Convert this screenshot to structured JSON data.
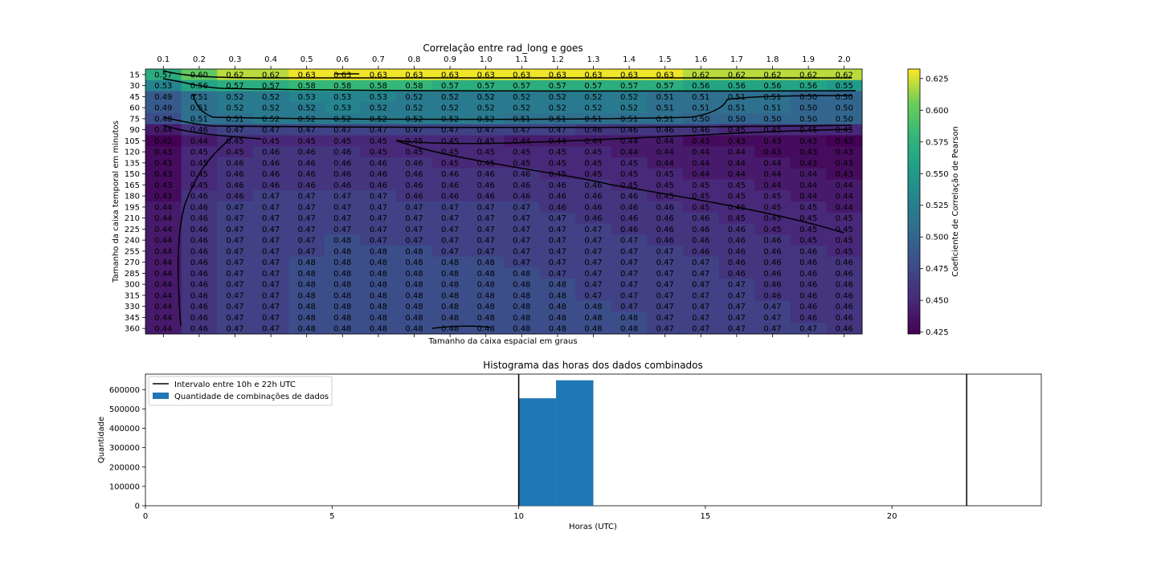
{
  "chart_data": [
    {
      "type": "heatmap",
      "title": "Correlação entre rad_long e goes",
      "xlabel": "Tamanho da caixa espacial em graus",
      "ylabel": "Tamanho da caixa temporal em minutos",
      "colorbar_label": "Coeficiente de Correlação de Pearson",
      "colormap": "viridis",
      "x_tick_position": "top",
      "x": [
        "0.1",
        "0.2",
        "0.3",
        "0.4",
        "0.5",
        "0.6",
        "0.7",
        "0.8",
        "0.9",
        "1.0",
        "1.1",
        "1.2",
        "1.3",
        "1.4",
        "1.5",
        "1.6",
        "1.7",
        "1.8",
        "1.9",
        "2.0"
      ],
      "y": [
        "15",
        "30",
        "45",
        "60",
        "75",
        "90",
        "105",
        "120",
        "135",
        "150",
        "165",
        "180",
        "195",
        "210",
        "225",
        "240",
        "255",
        "270",
        "285",
        "300",
        "315",
        "330",
        "345",
        "360"
      ],
      "vmin": 0.4235,
      "vmax": 0.6325,
      "colorbar_ticks": [
        "0.425",
        "0.450",
        "0.475",
        "0.500",
        "0.525",
        "0.550",
        "0.575",
        "0.600",
        "0.625"
      ],
      "values": [
        [
          0.57,
          0.6,
          0.62,
          0.62,
          0.63,
          0.63,
          0.63,
          0.63,
          0.63,
          0.63,
          0.63,
          0.63,
          0.63,
          0.63,
          0.63,
          0.62,
          0.62,
          0.62,
          0.62,
          0.62
        ],
        [
          0.53,
          0.56,
          0.57,
          0.57,
          0.58,
          0.58,
          0.58,
          0.58,
          0.57,
          0.57,
          0.57,
          0.57,
          0.57,
          0.57,
          0.57,
          0.56,
          0.56,
          0.56,
          0.56,
          0.55
        ],
        [
          0.49,
          0.51,
          0.52,
          0.52,
          0.53,
          0.53,
          0.53,
          0.52,
          0.52,
          0.52,
          0.52,
          0.52,
          0.52,
          0.52,
          0.51,
          0.51,
          0.51,
          0.51,
          0.5,
          0.5
        ],
        [
          0.49,
          0.51,
          0.52,
          0.52,
          0.52,
          0.53,
          0.52,
          0.52,
          0.52,
          0.52,
          0.52,
          0.52,
          0.52,
          0.52,
          0.51,
          0.51,
          0.51,
          0.51,
          0.5,
          0.5
        ],
        [
          0.48,
          0.51,
          0.51,
          0.52,
          0.52,
          0.52,
          0.52,
          0.52,
          0.52,
          0.52,
          0.51,
          0.51,
          0.51,
          0.51,
          0.51,
          0.5,
          0.5,
          0.5,
          0.5,
          0.5
        ],
        [
          0.44,
          0.46,
          0.47,
          0.47,
          0.47,
          0.47,
          0.47,
          0.47,
          0.47,
          0.47,
          0.47,
          0.47,
          0.46,
          0.46,
          0.46,
          0.46,
          0.45,
          0.45,
          0.45,
          0.45
        ],
        [
          0.42,
          0.44,
          0.45,
          0.45,
          0.45,
          0.45,
          0.45,
          0.45,
          0.45,
          0.45,
          0.44,
          0.44,
          0.44,
          0.44,
          0.44,
          0.43,
          0.43,
          0.43,
          0.43,
          0.42
        ],
        [
          0.43,
          0.45,
          0.45,
          0.46,
          0.46,
          0.46,
          0.45,
          0.45,
          0.45,
          0.45,
          0.45,
          0.45,
          0.45,
          0.44,
          0.44,
          0.44,
          0.44,
          0.43,
          0.43,
          0.43
        ],
        [
          0.43,
          0.45,
          0.46,
          0.46,
          0.46,
          0.46,
          0.46,
          0.46,
          0.45,
          0.45,
          0.45,
          0.45,
          0.45,
          0.45,
          0.44,
          0.44,
          0.44,
          0.44,
          0.43,
          0.43
        ],
        [
          0.43,
          0.45,
          0.46,
          0.46,
          0.46,
          0.46,
          0.46,
          0.46,
          0.46,
          0.46,
          0.46,
          0.45,
          0.45,
          0.45,
          0.45,
          0.44,
          0.44,
          0.44,
          0.44,
          0.43
        ],
        [
          0.43,
          0.45,
          0.46,
          0.46,
          0.46,
          0.46,
          0.46,
          0.46,
          0.46,
          0.46,
          0.46,
          0.46,
          0.46,
          0.45,
          0.45,
          0.45,
          0.45,
          0.44,
          0.44,
          0.44
        ],
        [
          0.43,
          0.46,
          0.46,
          0.47,
          0.47,
          0.47,
          0.47,
          0.46,
          0.46,
          0.46,
          0.46,
          0.46,
          0.46,
          0.46,
          0.45,
          0.45,
          0.45,
          0.45,
          0.44,
          0.44
        ],
        [
          0.44,
          0.46,
          0.47,
          0.47,
          0.47,
          0.47,
          0.47,
          0.47,
          0.47,
          0.47,
          0.47,
          0.46,
          0.46,
          0.46,
          0.46,
          0.45,
          0.45,
          0.45,
          0.45,
          0.44
        ],
        [
          0.44,
          0.46,
          0.47,
          0.47,
          0.47,
          0.47,
          0.47,
          0.47,
          0.47,
          0.47,
          0.47,
          0.47,
          0.46,
          0.46,
          0.46,
          0.46,
          0.45,
          0.45,
          0.45,
          0.45
        ],
        [
          0.44,
          0.46,
          0.47,
          0.47,
          0.47,
          0.47,
          0.47,
          0.47,
          0.47,
          0.47,
          0.47,
          0.47,
          0.47,
          0.46,
          0.46,
          0.46,
          0.46,
          0.45,
          0.45,
          0.45
        ],
        [
          0.44,
          0.46,
          0.47,
          0.47,
          0.47,
          0.48,
          0.47,
          0.47,
          0.47,
          0.47,
          0.47,
          0.47,
          0.47,
          0.47,
          0.46,
          0.46,
          0.46,
          0.46,
          0.45,
          0.45
        ],
        [
          0.44,
          0.46,
          0.47,
          0.47,
          0.47,
          0.48,
          0.48,
          0.48,
          0.47,
          0.47,
          0.47,
          0.47,
          0.47,
          0.47,
          0.47,
          0.46,
          0.46,
          0.46,
          0.46,
          0.45
        ],
        [
          0.44,
          0.46,
          0.47,
          0.47,
          0.48,
          0.48,
          0.48,
          0.48,
          0.48,
          0.48,
          0.47,
          0.47,
          0.47,
          0.47,
          0.47,
          0.47,
          0.46,
          0.46,
          0.46,
          0.46
        ],
        [
          0.44,
          0.46,
          0.47,
          0.47,
          0.48,
          0.48,
          0.48,
          0.48,
          0.48,
          0.48,
          0.48,
          0.47,
          0.47,
          0.47,
          0.47,
          0.47,
          0.46,
          0.46,
          0.46,
          0.46
        ],
        [
          0.44,
          0.46,
          0.47,
          0.47,
          0.48,
          0.48,
          0.48,
          0.48,
          0.48,
          0.48,
          0.48,
          0.48,
          0.47,
          0.47,
          0.47,
          0.47,
          0.47,
          0.46,
          0.46,
          0.46
        ],
        [
          0.44,
          0.46,
          0.47,
          0.47,
          0.48,
          0.48,
          0.48,
          0.48,
          0.48,
          0.48,
          0.48,
          0.48,
          0.47,
          0.47,
          0.47,
          0.47,
          0.47,
          0.46,
          0.46,
          0.46
        ],
        [
          0.44,
          0.46,
          0.47,
          0.47,
          0.48,
          0.48,
          0.48,
          0.48,
          0.48,
          0.48,
          0.48,
          0.48,
          0.48,
          0.47,
          0.47,
          0.47,
          0.47,
          0.47,
          0.46,
          0.46
        ],
        [
          0.44,
          0.46,
          0.47,
          0.47,
          0.48,
          0.48,
          0.48,
          0.48,
          0.48,
          0.48,
          0.48,
          0.48,
          0.48,
          0.48,
          0.47,
          0.47,
          0.47,
          0.47,
          0.46,
          0.46
        ],
        [
          0.44,
          0.46,
          0.47,
          0.47,
          0.48,
          0.48,
          0.48,
          0.48,
          0.48,
          0.48,
          0.48,
          0.48,
          0.48,
          0.48,
          0.47,
          0.47,
          0.47,
          0.47,
          0.47,
          0.46
        ]
      ]
    },
    {
      "type": "bar",
      "title": "Histograma das horas dos dados combinados",
      "xlabel": "Horas (UTC)",
      "ylabel": "Quantidade",
      "xlim": [
        0,
        24
      ],
      "ylim": [
        0,
        680000
      ],
      "x_ticks": [
        "0",
        "5",
        "10",
        "15",
        "20"
      ],
      "y_ticks": [
        "0",
        "100000",
        "200000",
        "300000",
        "400000",
        "500000",
        "600000"
      ],
      "bins": [
        {
          "start": 10,
          "end": 11,
          "value": 555000
        },
        {
          "start": 11,
          "end": 12,
          "value": 648000
        }
      ],
      "vlines": [
        10,
        22
      ],
      "bar_color": "#1f77b4",
      "legend_position": "top-left",
      "legend": {
        "line": "Intervalo entre 10h e 22h UTC",
        "bar": "Quantidade de combinações de dados"
      }
    }
  ]
}
